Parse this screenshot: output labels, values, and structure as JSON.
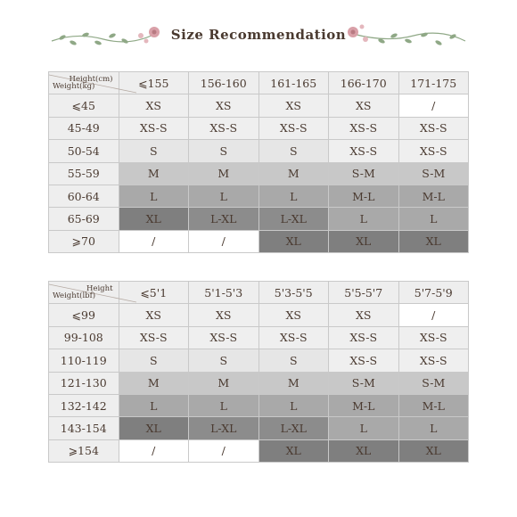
{
  "title": "Size Recommendation",
  "colors": {
    "text": "#4a3a30",
    "border": "#c9c9c9",
    "header_bg": "#eeeeee",
    "vine": "#8fa886",
    "flower": "#d9a0a8"
  },
  "shade_map": {
    "XS": "xs",
    "XS-S": "xs",
    "S": "s",
    "M": "m",
    "S-M": "m",
    "L": "l",
    "M-L": "l",
    "L-XL": "xl",
    "XL": "xl2",
    "/": "w"
  },
  "table_kg": {
    "corner_top": "Height(cm)",
    "corner_bottom": "Weight(kg)",
    "columns": [
      "⩽155",
      "156-160",
      "161-165",
      "166-170",
      "171-175"
    ],
    "rows": [
      {
        "label": "⩽45",
        "cells": [
          "XS",
          "XS",
          "XS",
          "XS",
          "/"
        ]
      },
      {
        "label": "45-49",
        "cells": [
          "XS-S",
          "XS-S",
          "XS-S",
          "XS-S",
          "XS-S"
        ]
      },
      {
        "label": "50-54",
        "cells": [
          "S",
          "S",
          "S",
          "XS-S",
          "XS-S"
        ]
      },
      {
        "label": "55-59",
        "cells": [
          "M",
          "M",
          "M",
          "S-M",
          "S-M"
        ]
      },
      {
        "label": "60-64",
        "cells": [
          "L",
          "L",
          "L",
          "M-L",
          "M-L"
        ]
      },
      {
        "label": "65-69",
        "cells": [
          "XL",
          "L-XL",
          "L-XL",
          "L",
          "L"
        ]
      },
      {
        "label": "⩾70",
        "cells": [
          "/",
          "/",
          "XL",
          "XL",
          "XL"
        ]
      }
    ]
  },
  "table_lb": {
    "corner_top": "Height",
    "corner_bottom": "Weight(lbf)",
    "columns": [
      "⩽5'1",
      "5'1-5'3",
      "5'3-5'5",
      "5'5-5'7",
      "5'7-5'9"
    ],
    "rows": [
      {
        "label": "⩽99",
        "cells": [
          "XS",
          "XS",
          "XS",
          "XS",
          "/"
        ]
      },
      {
        "label": "99-108",
        "cells": [
          "XS-S",
          "XS-S",
          "XS-S",
          "XS-S",
          "XS-S"
        ]
      },
      {
        "label": "110-119",
        "cells": [
          "S",
          "S",
          "S",
          "XS-S",
          "XS-S"
        ]
      },
      {
        "label": "121-130",
        "cells": [
          "M",
          "M",
          "M",
          "S-M",
          "S-M"
        ]
      },
      {
        "label": "132-142",
        "cells": [
          "L",
          "L",
          "L",
          "M-L",
          "M-L"
        ]
      },
      {
        "label": "143-154",
        "cells": [
          "XL",
          "L-XL",
          "L-XL",
          "L",
          "L"
        ]
      },
      {
        "label": "⩾154",
        "cells": [
          "/",
          "/",
          "XL",
          "XL",
          "XL"
        ]
      }
    ]
  }
}
